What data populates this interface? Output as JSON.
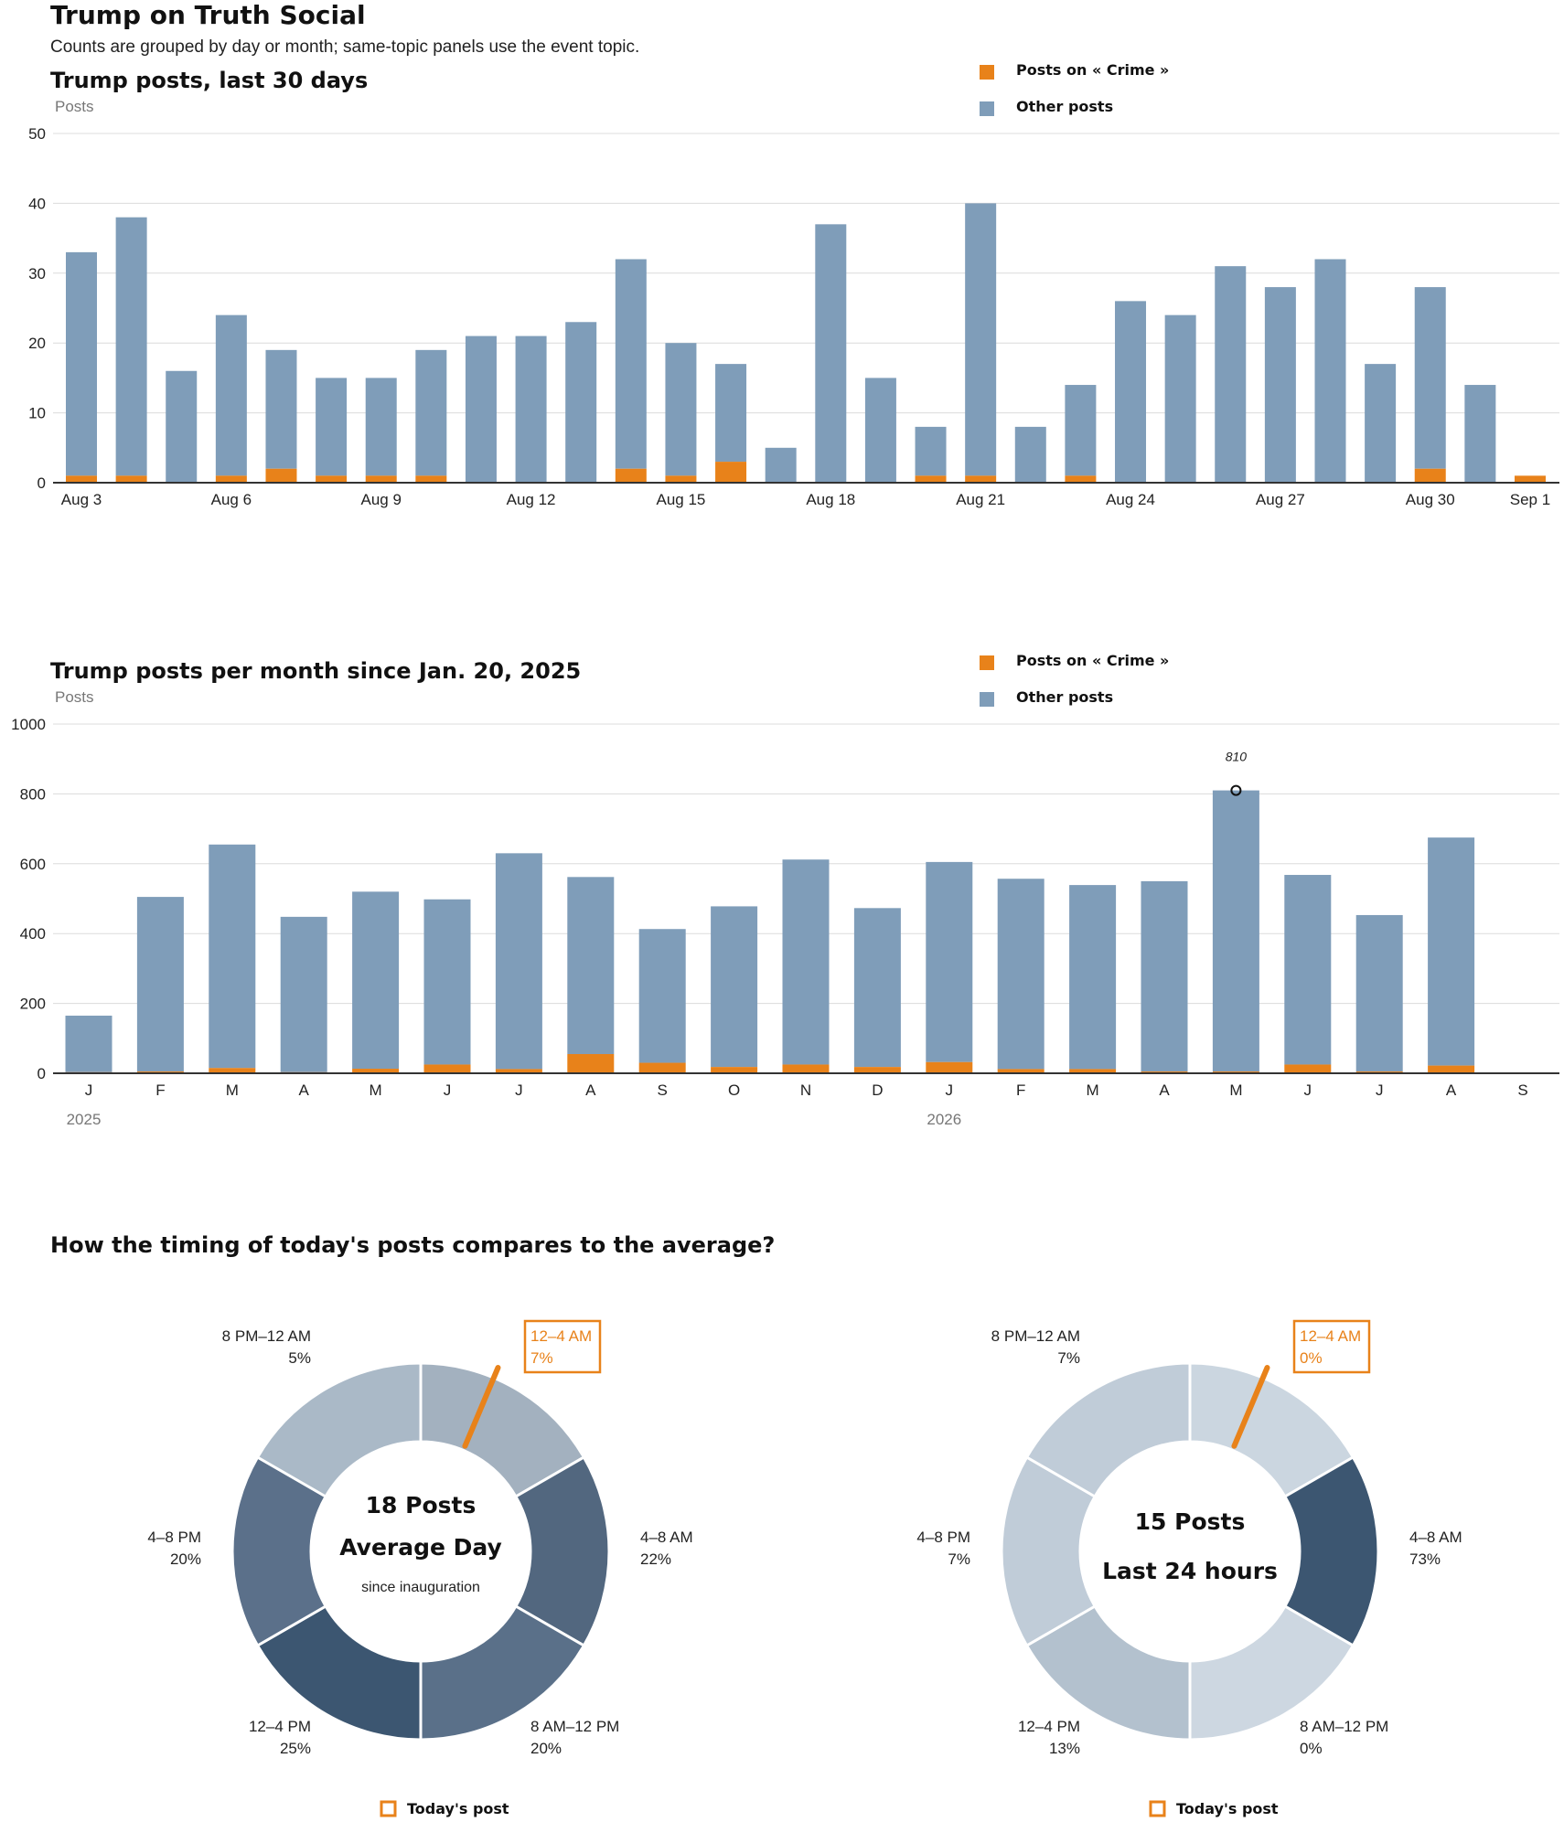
{
  "header": {
    "title": "Trump on Truth Social",
    "subtitle": "Counts are grouped by day or month; same-topic panels use the event topic."
  },
  "colors": {
    "topic": "#E8821A",
    "other": "#7F9DB9",
    "pie": [
      "#A3B1BF",
      "#52677F",
      "#5A7089",
      "#3C5671",
      "#5B708A",
      "#AAB9C7"
    ],
    "pie2": [
      "#CBD6E0",
      "#3C5671",
      "#CDD7E1",
      "#B3C1CE",
      "#C0CCD8",
      "#C0CCD8"
    ]
  },
  "legend": {
    "topic": "Posts on « Crime »",
    "other": "Other posts"
  },
  "chart_data": [
    {
      "type": "bar",
      "stacked": true,
      "title": "Trump posts, last 30 days",
      "ylabel": "Posts",
      "ylim": [
        0,
        50
      ],
      "yticks": [
        "0",
        "10",
        "20",
        "30",
        "40",
        "50"
      ],
      "legend_position": "top-right",
      "categories": [
        "Aug 3",
        "Aug 4",
        "Aug 5",
        "Aug 6",
        "Aug 7",
        "Aug 8",
        "Aug 9",
        "Aug 10",
        "Aug 11",
        "Aug 12",
        "Aug 13",
        "Aug 14",
        "Aug 15",
        "Aug 16",
        "Aug 17",
        "Aug 18",
        "Aug 19",
        "Aug 20",
        "Aug 21",
        "Aug 22",
        "Aug 23",
        "Aug 24",
        "Aug 25",
        "Aug 26",
        "Aug 27",
        "Aug 28",
        "Aug 29",
        "Aug 30",
        "Aug 31",
        "Sep 1"
      ],
      "tick_labels": [
        "Aug 3",
        "",
        "",
        "Aug 6",
        "",
        "",
        "Aug 9",
        "",
        "",
        "Aug 12",
        "",
        "",
        "Aug 15",
        "",
        "",
        "Aug 18",
        "",
        "",
        "Aug 21",
        "",
        "",
        "Aug 24",
        "",
        "",
        "Aug 27",
        "",
        "",
        "Aug 30",
        "",
        "Sep 1"
      ],
      "series": [
        {
          "name": "Posts on « Crime »",
          "values": [
            1,
            1,
            0,
            1,
            2,
            1,
            1,
            1,
            0,
            0,
            0,
            2,
            1,
            3,
            0,
            0,
            0,
            1,
            1,
            0,
            1,
            0,
            0,
            0,
            0,
            0,
            0,
            2,
            0,
            1
          ]
        },
        {
          "name": "Other posts",
          "values": [
            32,
            37,
            16,
            23,
            17,
            14,
            14,
            18,
            21,
            21,
            23,
            30,
            19,
            14,
            5,
            37,
            15,
            7,
            39,
            8,
            13,
            26,
            24,
            31,
            28,
            32,
            17,
            26,
            14,
            0
          ]
        }
      ]
    },
    {
      "type": "bar",
      "stacked": true,
      "title": "Trump posts per month since Jan. 20, 2025",
      "ylabel": "Posts",
      "ylim": [
        0,
        1000
      ],
      "yticks": [
        "0",
        "200",
        "400",
        "600",
        "800",
        "1000"
      ],
      "legend_position": "top-right",
      "categories": [
        "J",
        "F",
        "M",
        "A",
        "M",
        "J",
        "J",
        "A",
        "S",
        "O",
        "N",
        "D",
        "J",
        "F",
        "M",
        "A",
        "M",
        "J",
        "J",
        "A",
        "S"
      ],
      "year_labels": [
        {
          "label": "2025",
          "index": 0
        },
        {
          "label": "2026",
          "index": 12
        }
      ],
      "annotation": {
        "index": 16,
        "value": 810,
        "text": "810"
      },
      "series": [
        {
          "name": "Posts on « Crime »",
          "values": [
            3,
            5,
            15,
            3,
            13,
            25,
            12,
            55,
            30,
            18,
            25,
            18,
            32,
            12,
            12,
            5,
            5,
            25,
            5,
            22,
            0
          ]
        },
        {
          "name": "Other posts",
          "values": [
            162,
            500,
            640,
            445,
            507,
            473,
            618,
            507,
            383,
            460,
            587,
            455,
            573,
            545,
            527,
            545,
            805,
            543,
            448,
            653,
            0
          ]
        }
      ]
    },
    {
      "type": "pie",
      "donut": true,
      "categories": [
        "12–4 AM",
        "4–8 AM",
        "8 AM–12 PM",
        "12–4 PM",
        "4–8 PM",
        "8 PM–12 AM"
      ],
      "values": [
        7,
        22,
        20,
        25,
        20,
        5
      ],
      "labels_pct": [
        "7%",
        "22%",
        "20%",
        "25%",
        "20%",
        "5%"
      ],
      "highlight_index": 0,
      "center": {
        "count": "18 Posts",
        "title": "Average Day",
        "note": "since inauguration"
      },
      "legend": "Today's post"
    },
    {
      "type": "pie",
      "donut": true,
      "categories": [
        "12–4 AM",
        "4–8 AM",
        "8 AM–12 PM",
        "12–4 PM",
        "4–8 PM",
        "8 PM–12 AM"
      ],
      "values": [
        0,
        73,
        0,
        13,
        7,
        7
      ],
      "labels_pct": [
        "0%",
        "73%",
        "0%",
        "13%",
        "7%",
        "7%"
      ],
      "highlight_index": 0,
      "center": {
        "count": "15 Posts",
        "title": "Last 24 hours",
        "note": ""
      },
      "legend": "Today's post"
    }
  ],
  "timing": {
    "title": "How the timing of today's posts compares to the average?"
  }
}
